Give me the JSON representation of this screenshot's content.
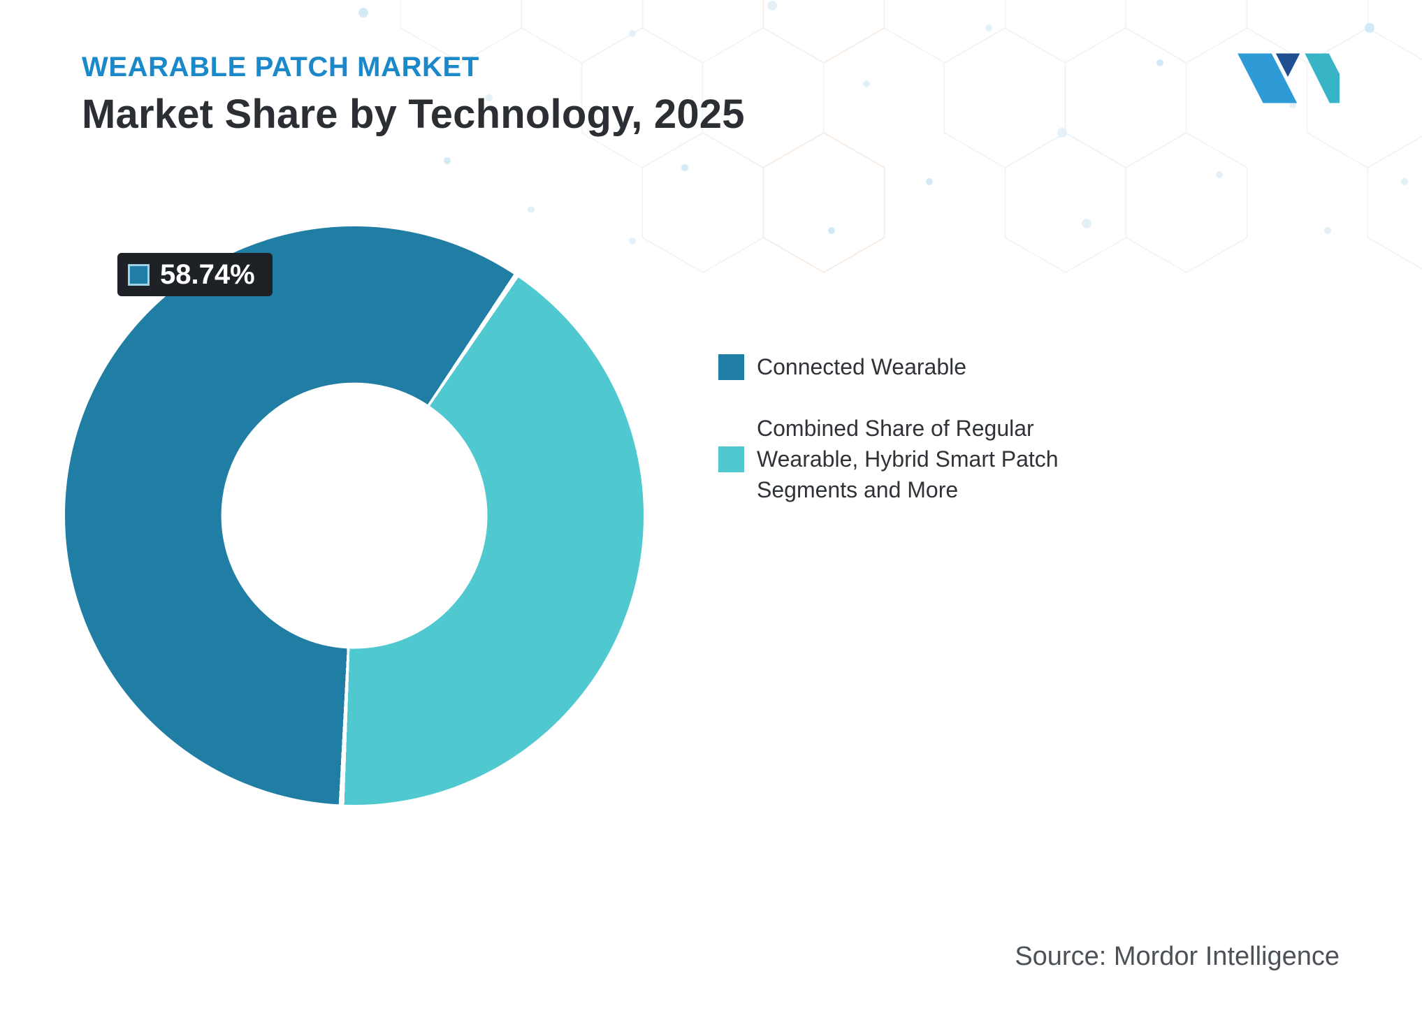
{
  "header": {
    "kicker": "WEARABLE PATCH MARKET",
    "title": "Market Share by Technology, 2025"
  },
  "chart_data": {
    "type": "pie",
    "subtype": "donut",
    "title": "Market Share by Technology, 2025",
    "categories": [
      "Connected Wearable",
      "Combined Share of Regular Wearable, Hybrid Smart Patch Segments and More"
    ],
    "values": [
      58.74,
      41.26
    ],
    "unit": "%",
    "colors": [
      "#207EA4",
      "#4FC9CF"
    ],
    "data_label": {
      "text": "58.74%",
      "series_index": 0
    },
    "legend_position": "right",
    "start_angle_deg": 34,
    "gap_deg": 0.55,
    "inner_radius_ratio": 0.46
  },
  "legend": {
    "items": [
      {
        "label": "Connected Wearable",
        "color": "#207EA4"
      },
      {
        "label": "Combined Share of Regular Wearable, Hybrid Smart Patch Segments and More",
        "color": "#4FC9CF"
      }
    ]
  },
  "source": {
    "text": "Source: Mordor Intelligence"
  },
  "palette": {
    "page_bg": "#FFFFFF",
    "kicker_blue": "#1B88C9",
    "title_dark": "#2B2E32",
    "legend_text": "#2F3338",
    "source_text": "#4C5157",
    "badge_bg": "#1E2125",
    "badge_text": "#FFFFFF",
    "badge_swatch_border": "#9FD2E8",
    "logo_blue": "#2E9BD6",
    "logo_navy": "#1F4E91",
    "logo_teal": "#39B4C6",
    "pattern_line": "#DFECF4",
    "pattern_line_warm": "#F2D9C8",
    "pattern_dot": "#CFE6F3",
    "pattern_dot_strong": "#AED9EE"
  }
}
